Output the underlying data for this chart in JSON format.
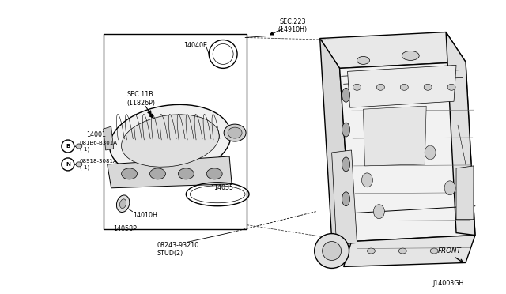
{
  "bg_color": "#ffffff",
  "line_color": "#000000",
  "fig_width": 6.4,
  "fig_height": 3.72,
  "dpi": 100,
  "diagram_id": "J14003GH",
  "labels": {
    "sec223": "SEC.223\n(14910H)",
    "sec11b": "SEC.11B\n(11826P)",
    "14040E": "14040E",
    "14001": "14001",
    "081B6_B301A": "081B6-B301A\n( 1)",
    "08918_3081A": "08918-3081A\n( 1)",
    "14010H": "14010H",
    "14058P": "14058P",
    "14035": "14035",
    "08243_93210": "08243-93210\nSTUD(2)",
    "FRONT": "FRONT"
  }
}
